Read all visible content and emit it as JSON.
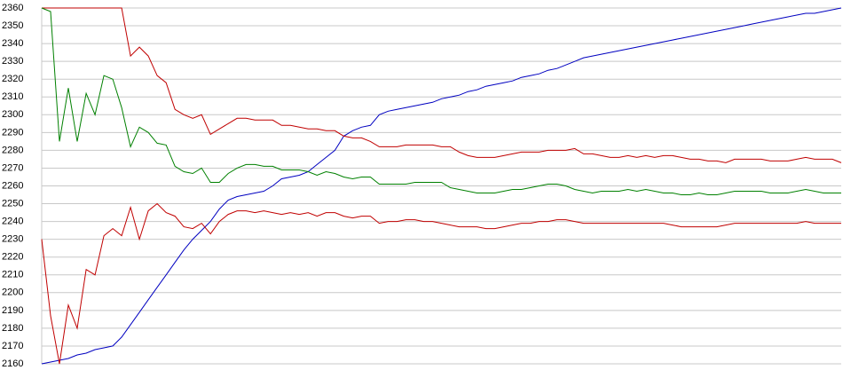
{
  "chart_data": {
    "type": "line",
    "ylim": [
      2160,
      2360
    ],
    "yticks": [
      2160,
      2170,
      2180,
      2190,
      2200,
      2210,
      2220,
      2230,
      2240,
      2250,
      2260,
      2270,
      2280,
      2290,
      2300,
      2310,
      2320,
      2330,
      2340,
      2350,
      2360
    ],
    "grid": true,
    "series": [
      {
        "color": "#0000c0",
        "values": [
          2160,
          2161,
          2162,
          2163,
          2165,
          2166,
          2168,
          2169,
          2170,
          2175,
          2182,
          2189,
          2196,
          2203,
          2210,
          2217,
          2224,
          2230,
          2235,
          2240,
          2247,
          2252,
          2254,
          2255,
          2256,
          2257,
          2260,
          2264,
          2265,
          2266,
          2268,
          2272,
          2276,
          2280,
          2288,
          2291,
          2293,
          2294,
          2300,
          2302,
          2303,
          2304,
          2305,
          2306,
          2307,
          2309,
          2310,
          2311,
          2313,
          2314,
          2316,
          2317,
          2318,
          2319,
          2321,
          2322,
          2323,
          2325,
          2326,
          2328,
          2330,
          2332,
          2333,
          2334,
          2335,
          2336,
          2337,
          2338,
          2339,
          2340,
          2341,
          2342,
          2343,
          2344,
          2345,
          2346,
          2347,
          2348,
          2349,
          2350,
          2351,
          2352,
          2353,
          2354,
          2355,
          2356,
          2357,
          2357,
          2358,
          2359,
          2360
        ]
      },
      {
        "color": "#c00000",
        "values": [
          2360,
          2360,
          2360,
          2360,
          2360,
          2360,
          2360,
          2360,
          2360,
          2360,
          2333,
          2338,
          2333,
          2322,
          2318,
          2303,
          2300,
          2298,
          2300,
          2289,
          2292,
          2295,
          2298,
          2298,
          2297,
          2297,
          2297,
          2294,
          2294,
          2293,
          2292,
          2292,
          2291,
          2291,
          2288,
          2287,
          2287,
          2285,
          2282,
          2282,
          2282,
          2283,
          2283,
          2283,
          2283,
          2282,
          2282,
          2279,
          2277,
          2276,
          2276,
          2276,
          2277,
          2278,
          2279,
          2279,
          2279,
          2280,
          2280,
          2280,
          2281,
          2278,
          2278,
          2277,
          2276,
          2276,
          2277,
          2276,
          2277,
          2276,
          2277,
          2277,
          2276,
          2275,
          2275,
          2274,
          2274,
          2273,
          2275,
          2275,
          2275,
          2275,
          2274,
          2274,
          2274,
          2275,
          2276,
          2275,
          2275,
          2275,
          2273
        ]
      },
      {
        "color": "#008000",
        "values": [
          2360,
          2358,
          2285,
          2315,
          2285,
          2312,
          2300,
          2322,
          2320,
          2304,
          2282,
          2293,
          2290,
          2284,
          2283,
          2271,
          2268,
          2267,
          2270,
          2262,
          2262,
          2267,
          2270,
          2272,
          2272,
          2271,
          2271,
          2269,
          2269,
          2269,
          2268,
          2266,
          2268,
          2267,
          2265,
          2264,
          2265,
          2265,
          2261,
          2261,
          2261,
          2261,
          2262,
          2262,
          2262,
          2262,
          2259,
          2258,
          2257,
          2256,
          2256,
          2256,
          2257,
          2258,
          2258,
          2259,
          2260,
          2261,
          2261,
          2260,
          2258,
          2257,
          2256,
          2257,
          2257,
          2257,
          2258,
          2257,
          2258,
          2257,
          2256,
          2256,
          2255,
          2255,
          2256,
          2255,
          2255,
          2256,
          2257,
          2257,
          2257,
          2257,
          2256,
          2256,
          2256,
          2257,
          2258,
          2257,
          2256,
          2256,
          2256
        ]
      },
      {
        "color": "#c00000",
        "values": [
          2230,
          2187,
          2160,
          2193,
          2180,
          2213,
          2210,
          2232,
          2236,
          2232,
          2248,
          2230,
          2246,
          2250,
          2245,
          2243,
          2237,
          2236,
          2239,
          2233,
          2240,
          2244,
          2246,
          2246,
          2245,
          2246,
          2245,
          2244,
          2245,
          2244,
          2245,
          2243,
          2245,
          2245,
          2243,
          2242,
          2243,
          2243,
          2239,
          2240,
          2240,
          2241,
          2241,
          2240,
          2240,
          2239,
          2238,
          2237,
          2237,
          2237,
          2236,
          2236,
          2237,
          2238,
          2239,
          2239,
          2240,
          2240,
          2241,
          2241,
          2240,
          2239,
          2239,
          2239,
          2239,
          2239,
          2239,
          2239,
          2239,
          2239,
          2239,
          2238,
          2237,
          2237,
          2237,
          2237,
          2237,
          2238,
          2239,
          2239,
          2239,
          2239,
          2239,
          2239,
          2239,
          2239,
          2240,
          2239,
          2239,
          2239,
          2239
        ]
      }
    ]
  }
}
